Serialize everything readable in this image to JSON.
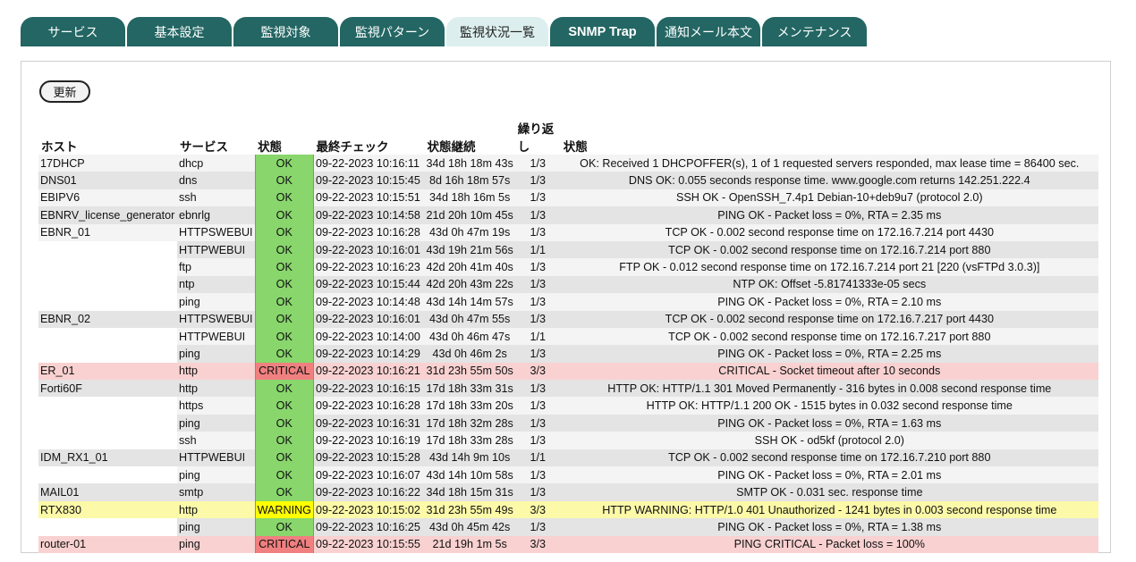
{
  "tabs": [
    {
      "label": "サービス",
      "active": false
    },
    {
      "label": "基本設定",
      "active": false
    },
    {
      "label": "監視対象",
      "active": false
    },
    {
      "label": "監視パターン",
      "active": false
    },
    {
      "label": "監視状況一覧",
      "active": true
    },
    {
      "label": "SNMP Trap",
      "active": false
    },
    {
      "label": "通知メール本文",
      "active": false
    },
    {
      "label": "メンテナンス",
      "active": false
    }
  ],
  "refresh_label": "更新",
  "columns": {
    "host": "ホスト",
    "service": "サービス",
    "state": "状態",
    "last_check": "最終チェック",
    "duration": "状態継続",
    "attempt": "繰り返し",
    "info": "状態"
  },
  "colors": {
    "ok": "#88d66c",
    "critical": "#f08080",
    "warning": "#ffff00",
    "tab": "#236663",
    "tab_active": "#dcefee"
  },
  "rows": [
    {
      "host": "17DHCP",
      "service": "dhcp",
      "state": "OK",
      "last_check": "09-22-2023 10:16:11",
      "duration": "34d 18h 18m 43s",
      "attempt": "1/3",
      "info": "OK: Received 1 DHCPOFFER(s), 1 of 1 requested servers responded, max lease time = 86400 sec."
    },
    {
      "host": "DNS01",
      "service": "dns",
      "state": "OK",
      "last_check": "09-22-2023 10:15:45",
      "duration": "8d 16h 18m 57s",
      "attempt": "1/3",
      "info": "DNS OK: 0.055 seconds response time. www.google.com returns 142.251.222.4"
    },
    {
      "host": "EBIPV6",
      "service": "ssh",
      "state": "OK",
      "last_check": "09-22-2023 10:15:51",
      "duration": "34d 18h 16m 5s",
      "attempt": "1/3",
      "info": "SSH OK - OpenSSH_7.4p1 Debian-10+deb9u7 (protocol 2.0)"
    },
    {
      "host": "EBNRV_license_generator",
      "service": "ebnrlg",
      "state": "OK",
      "last_check": "09-22-2023 10:14:58",
      "duration": "21d 20h 10m 45s",
      "attempt": "1/3",
      "info": "PING OK - Packet loss = 0%, RTA = 2.35 ms"
    },
    {
      "host": "EBNR_01",
      "service": "HTTPSWEBUI",
      "state": "OK",
      "last_check": "09-22-2023 10:16:28",
      "duration": "43d 0h 47m 19s",
      "attempt": "1/3",
      "info": "TCP OK - 0.002 second response time on 172.16.7.214 port 4430"
    },
    {
      "host": "",
      "service": "HTTPWEBUI",
      "state": "OK",
      "last_check": "09-22-2023 10:16:01",
      "duration": "43d 19h 21m 56s",
      "attempt": "1/1",
      "info": "TCP OK - 0.002 second response time on 172.16.7.214 port 880"
    },
    {
      "host": "",
      "service": "ftp",
      "state": "OK",
      "last_check": "09-22-2023 10:16:23",
      "duration": "42d 20h 41m 40s",
      "attempt": "1/3",
      "info": "FTP OK - 0.012 second response time on 172.16.7.214 port 21 [220 (vsFTPd 3.0.3)]"
    },
    {
      "host": "",
      "service": "ntp",
      "state": "OK",
      "last_check": "09-22-2023 10:15:44",
      "duration": "42d 20h 43m 22s",
      "attempt": "1/3",
      "info": "NTP OK: Offset -5.81741333e-05 secs"
    },
    {
      "host": "",
      "service": "ping",
      "state": "OK",
      "last_check": "09-22-2023 10:14:48",
      "duration": "43d 14h 14m 57s",
      "attempt": "1/3",
      "info": "PING OK - Packet loss = 0%, RTA = 2.10 ms"
    },
    {
      "host": "EBNR_02",
      "service": "HTTPSWEBUI",
      "state": "OK",
      "last_check": "09-22-2023 10:16:01",
      "duration": "43d 0h 47m 55s",
      "attempt": "1/3",
      "info": "TCP OK - 0.002 second response time on 172.16.7.217 port 4430"
    },
    {
      "host": "",
      "service": "HTTPWEBUI",
      "state": "OK",
      "last_check": "09-22-2023 10:14:00",
      "duration": "43d 0h 46m 47s",
      "attempt": "1/1",
      "info": "TCP OK - 0.002 second response time on 172.16.7.217 port 880"
    },
    {
      "host": "",
      "service": "ping",
      "state": "OK",
      "last_check": "09-22-2023 10:14:29",
      "duration": "43d 0h 46m 2s",
      "attempt": "1/3",
      "info": "PING OK - Packet loss = 0%, RTA = 2.25 ms"
    },
    {
      "host": "ER_01",
      "service": "http",
      "state": "CRITICAL",
      "last_check": "09-22-2023 10:16:21",
      "duration": "31d 23h 55m 50s",
      "attempt": "3/3",
      "info": "CRITICAL - Socket timeout after 10 seconds"
    },
    {
      "host": "Forti60F",
      "service": "http",
      "state": "OK",
      "last_check": "09-22-2023 10:16:15",
      "duration": "17d 18h 33m 31s",
      "attempt": "1/3",
      "info": "HTTP OK: HTTP/1.1 301 Moved Permanently - 316 bytes in 0.008 second response time"
    },
    {
      "host": "",
      "service": "https",
      "state": "OK",
      "last_check": "09-22-2023 10:16:28",
      "duration": "17d 18h 33m 20s",
      "attempt": "1/3",
      "info": "HTTP OK: HTTP/1.1 200 OK - 1515 bytes in 0.032 second response time"
    },
    {
      "host": "",
      "service": "ping",
      "state": "OK",
      "last_check": "09-22-2023 10:16:31",
      "duration": "17d 18h 32m 28s",
      "attempt": "1/3",
      "info": "PING OK - Packet loss = 0%, RTA = 1.63 ms"
    },
    {
      "host": "",
      "service": "ssh",
      "state": "OK",
      "last_check": "09-22-2023 10:16:19",
      "duration": "17d 18h 33m 28s",
      "attempt": "1/3",
      "info": "SSH OK - od5kf (protocol 2.0)"
    },
    {
      "host": "IDM_RX1_01",
      "service": "HTTPWEBUI",
      "state": "OK",
      "last_check": "09-22-2023 10:15:28",
      "duration": "43d 14h 9m 10s",
      "attempt": "1/1",
      "info": "TCP OK - 0.002 second response time on 172.16.7.210 port 880"
    },
    {
      "host": "",
      "service": "ping",
      "state": "OK",
      "last_check": "09-22-2023 10:16:07",
      "duration": "43d 14h 10m 58s",
      "attempt": "1/3",
      "info": "PING OK - Packet loss = 0%, RTA = 2.01 ms"
    },
    {
      "host": "MAIL01",
      "service": "smtp",
      "state": "OK",
      "last_check": "09-22-2023 10:16:22",
      "duration": "34d 18h 15m 31s",
      "attempt": "1/3",
      "info": "SMTP OK - 0.031 sec. response time"
    },
    {
      "host": "RTX830",
      "service": "http",
      "state": "WARNING",
      "last_check": "09-22-2023 10:15:02",
      "duration": "31d 23h 55m 49s",
      "attempt": "3/3",
      "info": "HTTP WARNING: HTTP/1.0 401 Unauthorized - 1241 bytes in 0.003 second response time"
    },
    {
      "host": "",
      "service": "ping",
      "state": "OK",
      "last_check": "09-22-2023 10:16:25",
      "duration": "43d 0h 45m 42s",
      "attempt": "1/3",
      "info": "PING OK - Packet loss = 0%, RTA = 1.38 ms"
    },
    {
      "host": "router-01",
      "service": "ping",
      "state": "CRITICAL",
      "last_check": "09-22-2023 10:15:55",
      "duration": "21d 19h 1m 5s",
      "attempt": "3/3",
      "info": "PING CRITICAL - Packet loss = 100%"
    }
  ]
}
